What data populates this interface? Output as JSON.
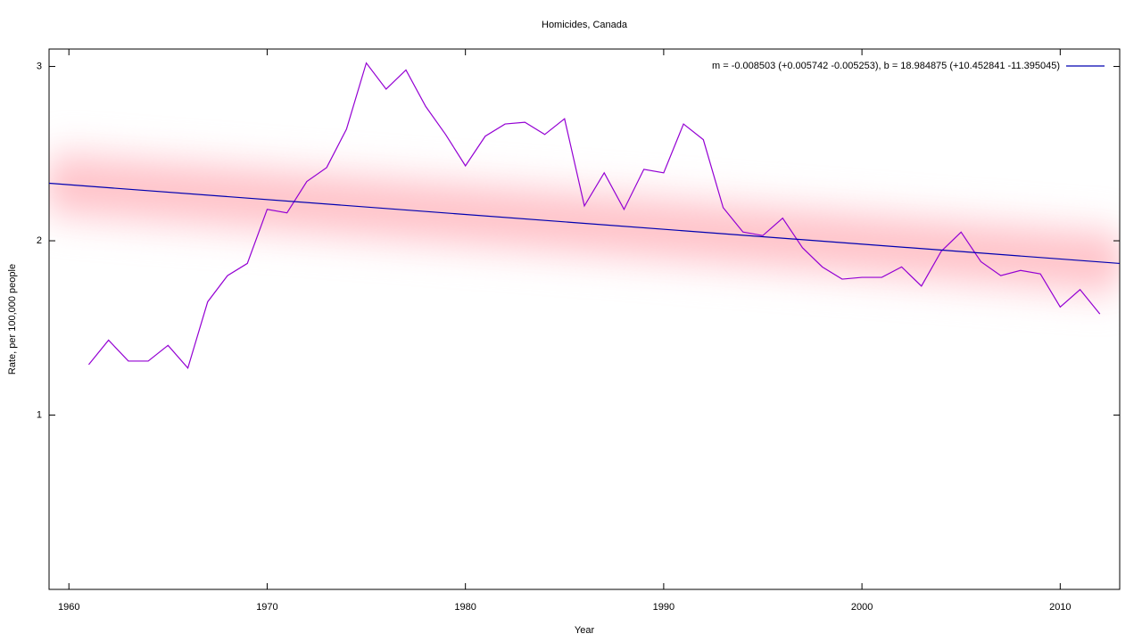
{
  "chart_data": {
    "type": "line",
    "title": "Homicides, Canada",
    "x_label": "Year",
    "y_label": "Rate, per 100,000 people",
    "xlim": [
      1959,
      2013
    ],
    "xticks": [
      1960,
      1970,
      1980,
      1990,
      2000,
      2010
    ],
    "ylim": [
      0,
      3.1
    ],
    "yticks": [
      1,
      2,
      3
    ],
    "legend": "top-right",
    "series": [
      {
        "color": "#9400d3",
        "x": [
          1961,
          1962,
          1963,
          1964,
          1965,
          1966,
          1967,
          1968,
          1969,
          1970,
          1971,
          1972,
          1973,
          1974,
          1975,
          1976,
          1977,
          1978,
          1979,
          1980,
          1981,
          1982,
          1983,
          1984,
          1985,
          1986,
          1987,
          1988,
          1989,
          1990,
          1991,
          1992,
          1993,
          1994,
          1995,
          1996,
          1997,
          1998,
          1999,
          2000,
          2001,
          2002,
          2003,
          2004,
          2005,
          2006,
          2007,
          2008,
          2009,
          2010,
          2011,
          2012
        ],
        "values": [
          1.29,
          1.43,
          1.31,
          1.31,
          1.4,
          1.27,
          1.65,
          1.8,
          1.87,
          2.18,
          2.16,
          2.34,
          2.42,
          2.64,
          3.02,
          2.87,
          2.98,
          2.77,
          2.61,
          2.43,
          2.6,
          2.67,
          2.68,
          2.61,
          2.7,
          2.2,
          2.39,
          2.18,
          2.41,
          2.39,
          2.67,
          2.58,
          2.19,
          2.05,
          2.03,
          2.13,
          1.96,
          1.85,
          1.78,
          1.79,
          1.79,
          1.85,
          1.74,
          1.94,
          2.05,
          1.88,
          1.8,
          1.83,
          1.81,
          1.62,
          1.72,
          1.58
        ]
      },
      {
        "name": "m = -0.008503 (+0.005742 -0.005253), b = 18.984875 (+10.452841 -11.395045)",
        "color": "#0000b0",
        "x": [
          1959,
          2013
        ],
        "values": [
          2.33,
          1.87
        ]
      }
    ]
  }
}
